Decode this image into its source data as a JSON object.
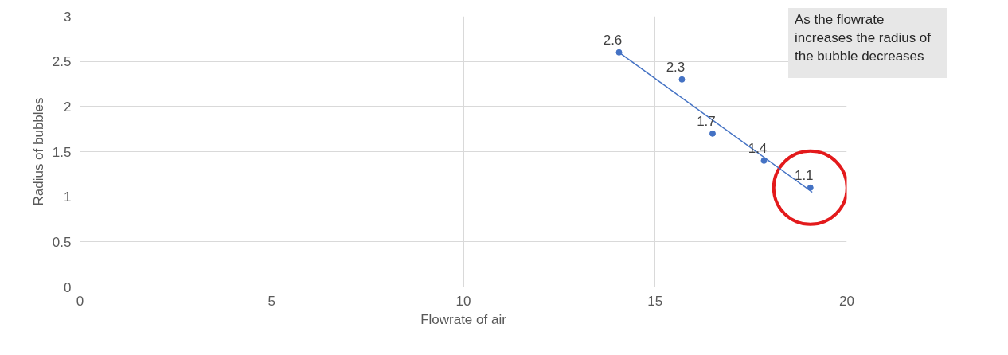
{
  "chart_data": {
    "type": "scatter",
    "xlabel": "Flowrate of air",
    "ylabel": "Radius of bubbles",
    "x": [
      14.06,
      15.7,
      16.5,
      17.84,
      19.05
    ],
    "series": [
      {
        "color": "#4472c4",
        "values": [
          2.6,
          2.3,
          1.7,
          1.4,
          1.1
        ],
        "value_labels": [
          "2.6",
          "2.3",
          "1.7",
          "1.4",
          "1.1"
        ],
        "marker": "circle"
      },
      {
        "type": "line",
        "color": "#4472c4",
        "x": [
          14.06,
          19.1
        ],
        "values": [
          2.6,
          1.05
        ],
        "marker": "none"
      }
    ],
    "grid": true,
    "xlim": [
      0,
      20
    ],
    "xticks": [
      0,
      5,
      10,
      15,
      20
    ],
    "ylim": [
      0,
      3
    ],
    "yticks": [
      0,
      0.5,
      1,
      1.5,
      2,
      2.5,
      3
    ],
    "annotations": [
      "As the flowrate increases the radius of the bubble decreases"
    ]
  }
}
